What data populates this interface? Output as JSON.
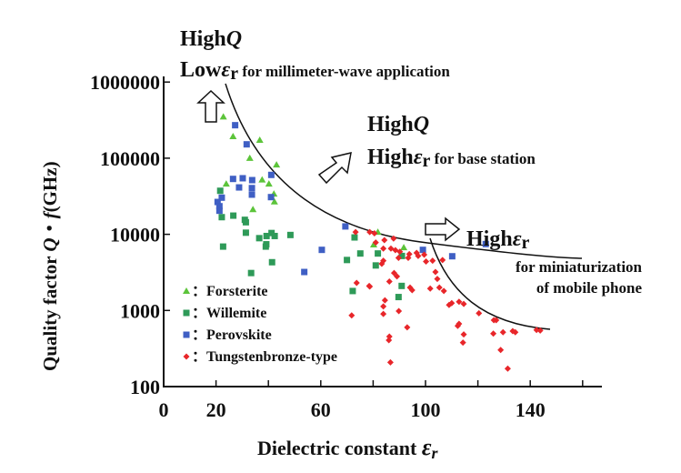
{
  "chart_data": {
    "type": "scatter",
    "xlabel": "Dielectric constant εr",
    "xlabel_main": "Dielectric constant ",
    "xlabel_symbol": "ε",
    "xlabel_sub": "r",
    "ylabel_main": "Quality factor ",
    "ylabel_Q": "Q",
    "ylabel_dot": "・",
    "ylabel_f": "f",
    "ylabel_unit": "(GHz)",
    "xlim": [
      0,
      165
    ],
    "ylim": [
      100,
      1000000
    ],
    "y_scale": "log",
    "x_ticks": [
      0,
      20,
      40,
      60,
      80,
      100,
      120,
      140,
      160
    ],
    "x_tick_labels": [
      "0",
      "20",
      "60",
      "100",
      "140"
    ],
    "x_tick_label_values": [
      0,
      20,
      60,
      100,
      140
    ],
    "y_tick_labels": [
      "1000000",
      "100000",
      "10000",
      "1000",
      "100"
    ],
    "y_tick_values": [
      1000000,
      100000,
      10000,
      1000,
      100
    ],
    "grid": false,
    "legend_position": "bottom-left",
    "series": [
      {
        "name": "Forsterite",
        "legend_label": "：Forsterite",
        "marker": "triangle",
        "color": "#5cc43a",
        "points": [
          [
            22.8,
            350000
          ],
          [
            26.5,
            193000
          ],
          [
            36.7,
            173000
          ],
          [
            32.9,
            100000
          ],
          [
            43.1,
            82000
          ],
          [
            23.9,
            46000
          ],
          [
            37.6,
            52000
          ],
          [
            40.2,
            46000
          ],
          [
            42.1,
            34000
          ],
          [
            42.3,
            26800
          ],
          [
            34.1,
            21200
          ],
          [
            81.8,
            10700
          ],
          [
            80.2,
            7300
          ],
          [
            91.7,
            6700
          ]
        ]
      },
      {
        "name": "Willemite",
        "legend_label": "：Willemite",
        "marker": "square",
        "color": "#2e9a58",
        "points": [
          [
            21.6,
            37300
          ],
          [
            22.2,
            16800
          ],
          [
            26.6,
            17600
          ],
          [
            31.0,
            15500
          ],
          [
            31.4,
            14400
          ],
          [
            31.4,
            10500
          ],
          [
            36.5,
            8900
          ],
          [
            39.3,
            9500
          ],
          [
            41.2,
            10400
          ],
          [
            42.4,
            9500
          ],
          [
            48.4,
            9800
          ],
          [
            22.7,
            6900
          ],
          [
            39.2,
            7400
          ],
          [
            39.0,
            6900
          ],
          [
            41.4,
            4300
          ],
          [
            33.4,
            3100
          ],
          [
            72.9,
            9100
          ],
          [
            70.0,
            4600
          ],
          [
            75.1,
            5600
          ],
          [
            81.8,
            5600
          ],
          [
            81.0,
            3900
          ],
          [
            91.0,
            5200
          ],
          [
            90.9,
            2100
          ],
          [
            89.7,
            1500
          ],
          [
            72.2,
            1800
          ]
        ]
      },
      {
        "name": "Perovskite",
        "legend_label": "：Perovskite",
        "marker": "square",
        "color": "#3f5fc4",
        "points": [
          [
            27.3,
            271000
          ],
          [
            31.7,
            152000
          ],
          [
            26.5,
            53400
          ],
          [
            30.2,
            54500
          ],
          [
            33.8,
            51500
          ],
          [
            28.8,
            41300
          ],
          [
            33.7,
            40500
          ],
          [
            33.7,
            33200
          ],
          [
            41.1,
            60300
          ],
          [
            41.0,
            30800
          ],
          [
            22.2,
            30300
          ],
          [
            20.6,
            26600
          ],
          [
            21.3,
            23400
          ],
          [
            21.3,
            20400
          ],
          [
            60.4,
            6250
          ],
          [
            53.7,
            3200
          ],
          [
            69.4,
            12700
          ],
          [
            99.0,
            6250
          ],
          [
            110.2,
            5150
          ],
          [
            123.0,
            7450
          ]
        ]
      },
      {
        "name": "Tungstenbronze-type",
        "legend_label": "：Tungstenbronze-type",
        "marker": "diamond",
        "color": "#e8262a",
        "points": [
          [
            73.3,
            10700
          ],
          [
            78.7,
            10700
          ],
          [
            80.5,
            10300
          ],
          [
            81.0,
            7800
          ],
          [
            84.3,
            8400
          ],
          [
            87.8,
            8800
          ],
          [
            83.9,
            6500
          ],
          [
            86.8,
            6500
          ],
          [
            88.5,
            6200
          ],
          [
            90.2,
            5900
          ],
          [
            93.8,
            5500
          ],
          [
            96.6,
            5700
          ],
          [
            97.2,
            5200
          ],
          [
            89.7,
            4900
          ],
          [
            93.4,
            4900
          ],
          [
            99.5,
            5400
          ],
          [
            100.2,
            4400
          ],
          [
            102.7,
            4500
          ],
          [
            106.5,
            4600
          ],
          [
            83.9,
            4500
          ],
          [
            83.3,
            4100
          ],
          [
            88.0,
            3100
          ],
          [
            89.1,
            2800
          ],
          [
            86.2,
            2400
          ],
          [
            78.5,
            2100
          ],
          [
            73.7,
            2300
          ],
          [
            78.7,
            2060
          ],
          [
            94.1,
            2000
          ],
          [
            94.9,
            1850
          ],
          [
            101.8,
            1940
          ],
          [
            105.3,
            2000
          ],
          [
            107.0,
            1800
          ],
          [
            103.8,
            3200
          ],
          [
            104.5,
            2600
          ],
          [
            84.5,
            1360
          ],
          [
            83.9,
            1130
          ],
          [
            110.0,
            1250
          ],
          [
            112.8,
            1300
          ],
          [
            71.8,
            860
          ],
          [
            109.0,
            1180
          ],
          [
            114.6,
            1220
          ],
          [
            120.4,
            920
          ],
          [
            126.1,
            745
          ],
          [
            127.0,
            745
          ],
          [
            112.3,
            627
          ],
          [
            112.8,
            667
          ],
          [
            114.6,
            484
          ],
          [
            114.3,
            378
          ],
          [
            125.9,
            497
          ],
          [
            129.6,
            517
          ],
          [
            133.3,
            535
          ],
          [
            134.3,
            517
          ],
          [
            142.4,
            555
          ],
          [
            143.8,
            545
          ],
          [
            128.7,
            303
          ],
          [
            131.4,
            172
          ],
          [
            83.9,
            900
          ],
          [
            89.8,
            980
          ],
          [
            93.0,
            600
          ],
          [
            86.2,
            454
          ],
          [
            86.0,
            407
          ],
          [
            86.6,
            208
          ]
        ]
      }
    ],
    "annotations": {
      "mmwave": {
        "line1_a": "High",
        "line1_q": "Q",
        "line2_a": "Low",
        "line2_eps": "ε",
        "line2_sub": "r",
        "line2_b": " for millimeter-wave application"
      },
      "base": {
        "line1_a": "High",
        "line1_q": "Q",
        "line2_a": "High",
        "line2_eps": "ε",
        "line2_sub": "r",
        "line2_b": " for base station"
      },
      "mobile": {
        "line1_a": "High",
        "line1_eps": "ε",
        "line1_sub": "r",
        "line2": "for miniaturization",
        "line3": "of mobile phone"
      }
    }
  }
}
